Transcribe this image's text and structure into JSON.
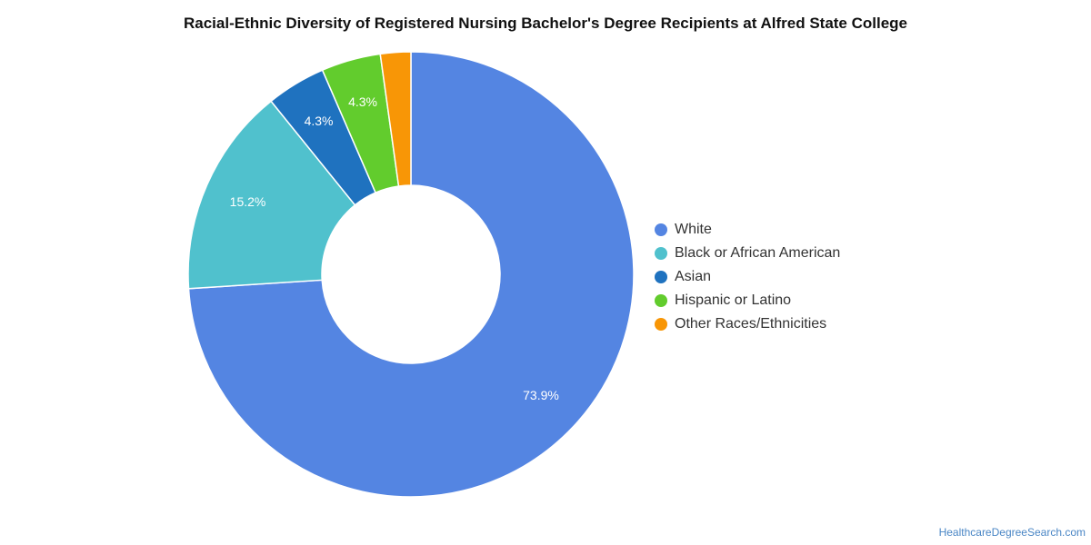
{
  "chart_data": {
    "type": "pie",
    "title": "Racial-Ethnic Diversity of Registered Nursing Bachelor's Degree Recipients at Alfred State College",
    "donut": true,
    "categories": [
      "White",
      "Black or African American",
      "Asian",
      "Hispanic or Latino",
      "Other Races/Ethnicities"
    ],
    "values": [
      73.9,
      15.2,
      4.3,
      4.3,
      2.2
    ],
    "data_labels": [
      "73.9%",
      "15.2%",
      "4.3%",
      "4.3%",
      ""
    ],
    "colors": [
      "#5485e2",
      "#50c1cd",
      "#1f72bf",
      "#62cc2d",
      "#f89606"
    ],
    "legend_position": "right"
  },
  "footer": {
    "source": "HealthcareDegreeSearch.com"
  }
}
